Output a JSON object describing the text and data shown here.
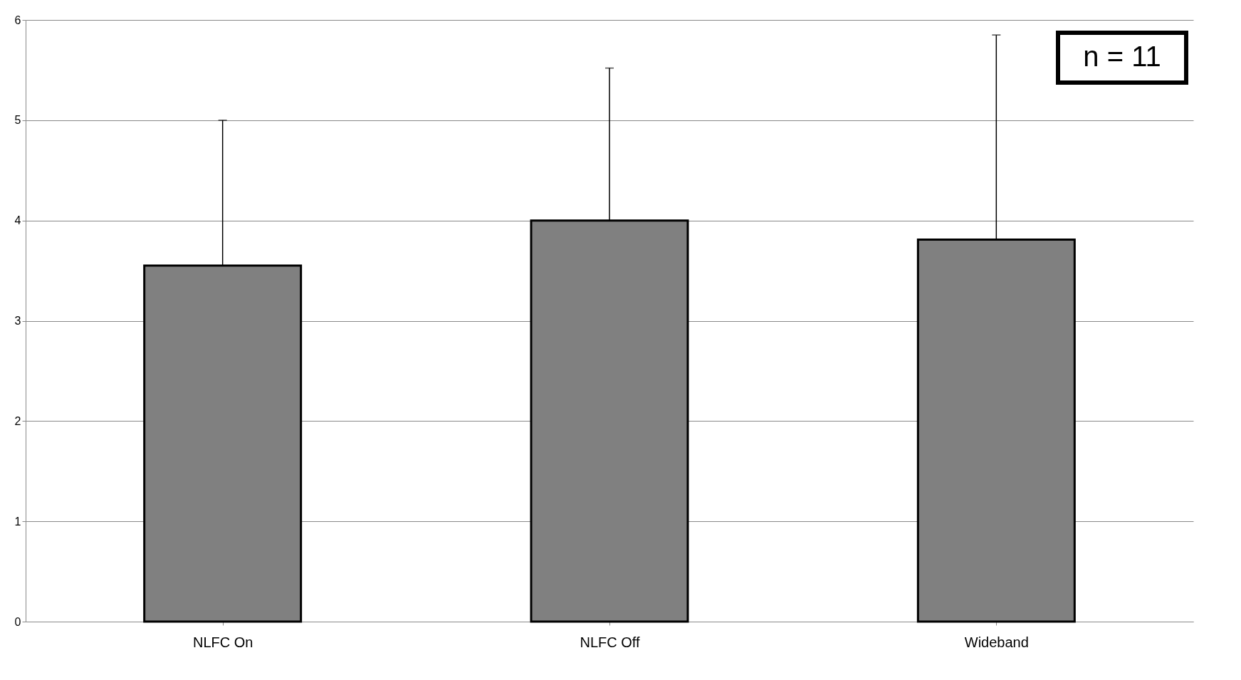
{
  "chart_data": {
    "type": "bar",
    "categories": [
      "NLFC On",
      "NLFC Off",
      "Wideband"
    ],
    "values": [
      3.55,
      4.0,
      3.81
    ],
    "errors": [
      [
        3.55,
        5.0
      ],
      [
        4.0,
        5.52
      ],
      [
        3.81,
        5.85
      ]
    ],
    "color": "#808080",
    "ylim": [
      0,
      6
    ],
    "yticks": [
      0,
      1,
      2,
      3,
      4,
      5,
      6
    ],
    "grid": "y",
    "annotations": [
      "n = 11"
    ]
  }
}
